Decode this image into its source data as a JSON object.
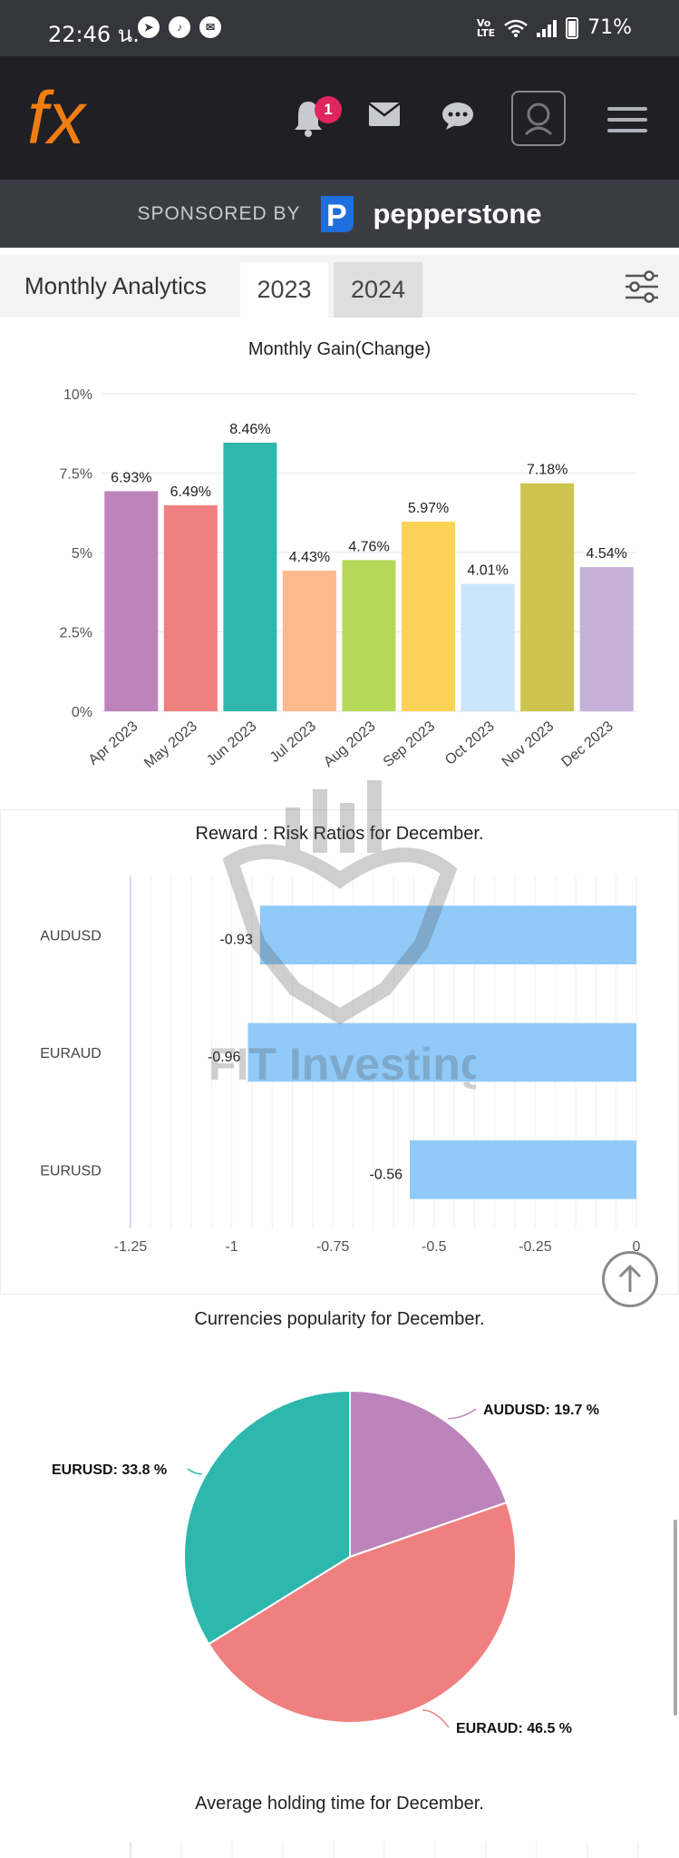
{
  "status_bar": {
    "time": "22:46 น.",
    "battery": "71%"
  },
  "header": {
    "logo_text": "fx",
    "notification_count": "1"
  },
  "sponsor": {
    "label": "SPONSORED BY",
    "brand": "pepperstone"
  },
  "analytics_tabs": {
    "title": "Monthly Analytics",
    "tabs": [
      {
        "label": "2023",
        "selected": true
      },
      {
        "label": "2024",
        "selected": false
      }
    ]
  },
  "watermark_text": "FIT Investing",
  "colors": {
    "header_bg": "#1f1f24",
    "status_bg": "#35363b",
    "ratio_bar": "#90caf9",
    "pie_teal": "#2db7ad",
    "pie_purple": "#bd83bb",
    "pie_pink": "#f08080"
  },
  "chart_data": [
    {
      "type": "bar",
      "title": "Monthly Gain(Change)",
      "categories": [
        "Apr 2023",
        "May 2023",
        "Jun 2023",
        "Jul 2023",
        "Aug 2023",
        "Sep 2023",
        "Oct 2023",
        "Nov 2023",
        "Dec 2023"
      ],
      "values": [
        6.93,
        6.49,
        8.46,
        4.43,
        4.76,
        5.97,
        4.01,
        7.18,
        4.54
      ],
      "value_labels": [
        "6.93%",
        "6.49%",
        "8.46%",
        "4.43%",
        "4.76%",
        "5.97%",
        "4.01%",
        "7.18%",
        "4.54%"
      ],
      "colors": [
        "#bd83bb",
        "#f08080",
        "#2db7ad",
        "#ffb98c",
        "#b5d856",
        "#fcd357",
        "#cce5fb",
        "#cdc44f",
        "#c6b0d8"
      ],
      "ylim": [
        0,
        10
      ],
      "yticks": [
        "0%",
        "2.5%",
        "5%",
        "7.5%",
        "10%"
      ],
      "grid": true
    },
    {
      "type": "bar",
      "orientation": "horizontal",
      "title": "Reward : Risk Ratios for December.",
      "categories": [
        "AUDUSD",
        "EURAUD",
        "EURUSD"
      ],
      "values": [
        -0.93,
        -0.96,
        -0.56
      ],
      "value_labels": [
        "-0.93",
        "-0.96",
        "-0.56"
      ],
      "xlim": [
        -1.25,
        0
      ],
      "xticks": [
        "-1.25",
        "-1",
        "-0.75",
        "-0.5",
        "-0.25",
        "0"
      ],
      "grid": true
    },
    {
      "type": "pie",
      "title": "Currencies popularity for December.",
      "slices": [
        {
          "label": "AUDUSD: 19.7 %",
          "value": 19.7,
          "color": "#bd83bb"
        },
        {
          "label": "EURAUD: 46.5 %",
          "value": 46.5,
          "color": "#f08080"
        },
        {
          "label": "EURUSD: 33.8 %",
          "value": 33.8,
          "color": "#2db7ad"
        }
      ]
    },
    {
      "type": "bar",
      "title": "Average holding time for December."
    }
  ]
}
